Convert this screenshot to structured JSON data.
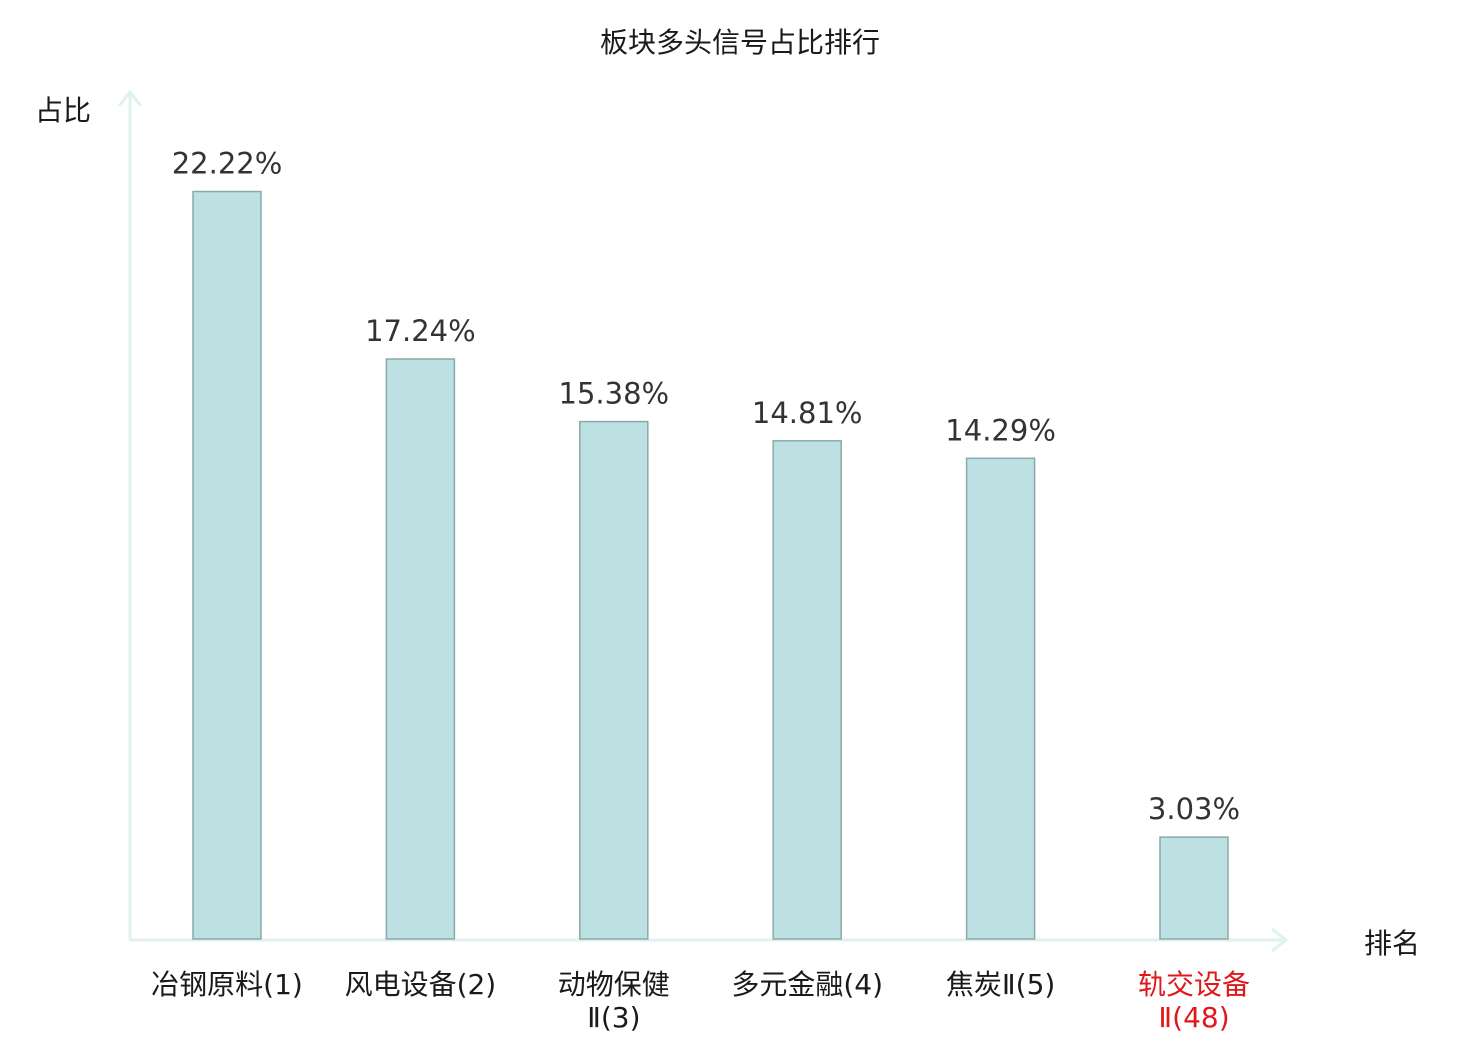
{
  "chart_data": {
    "type": "bar",
    "title": "板块多头信号占比排行",
    "ylabel": "占比",
    "xlabel": "排名",
    "ylim": [
      0,
      25
    ],
    "grid": false,
    "categories": [
      {
        "name": "冶钢原料",
        "rank": "(1)",
        "label_lines": [
          "冶钢原料(1)"
        ],
        "highlight": false
      },
      {
        "name": "风电设备",
        "rank": "(2)",
        "label_lines": [
          "风电设备(2)"
        ],
        "highlight": false
      },
      {
        "name": "动物保健",
        "rank": "Ⅱ(3)",
        "label_lines": [
          "动物保健",
          "Ⅱ(3)"
        ],
        "highlight": false
      },
      {
        "name": "多元金融",
        "rank": "(4)",
        "label_lines": [
          "多元金融(4)"
        ],
        "highlight": false
      },
      {
        "name": "焦炭",
        "rank": "Ⅱ(5)",
        "label_lines": [
          "焦炭Ⅱ(5)"
        ],
        "highlight": false
      },
      {
        "name": "轨交设备",
        "rank": "Ⅱ(48)",
        "label_lines": [
          "轨交设备",
          "Ⅱ(48)"
        ],
        "highlight": true
      }
    ],
    "values": [
      22.22,
      17.24,
      15.38,
      14.81,
      14.29,
      3.03
    ],
    "value_labels": [
      "22.22%",
      "17.24%",
      "15.38%",
      "14.81%",
      "14.29%",
      "3.03%"
    ],
    "colors": {
      "bar_fill": "#bde0e3",
      "bar_stroke": "#8aa9ab",
      "axis": "#e0f2ef",
      "text": "#1a1a1a",
      "value_text": "#333333",
      "highlight_text": "#e0181b"
    }
  }
}
